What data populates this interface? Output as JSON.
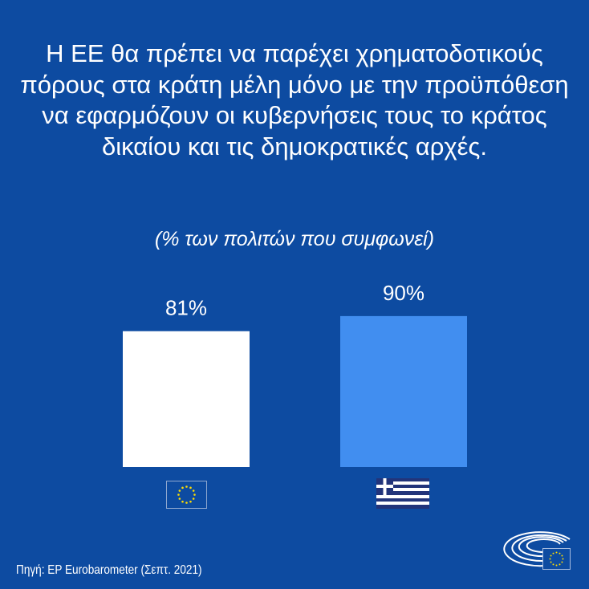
{
  "title": "Η ΕΕ θα πρέπει να παρέχει χρηματοδοτικούς πόρους στα κράτη μέλη μόνο με την προϋπόθεση να εφαρμόζουν οι κυβερνήσεις τους το κράτος δικαίου και τις δημοκρατικές αρχές.",
  "subtitle": "(% των πολιτών που συμφωνεί)",
  "source": "Πηγή: EP Eurobarometer (Σεπτ. 2021)",
  "colors": {
    "background": "#0d4ba1",
    "eu_bar": "#ffffff",
    "greece_bar": "#418ef0"
  },
  "chart_data": {
    "type": "bar",
    "categories": [
      "eu-flag-icon",
      "greece-flag-icon"
    ],
    "values": [
      81,
      90
    ],
    "data_labels": [
      "81%",
      "90%"
    ],
    "ylim": [
      0,
      100
    ],
    "grid": false
  }
}
